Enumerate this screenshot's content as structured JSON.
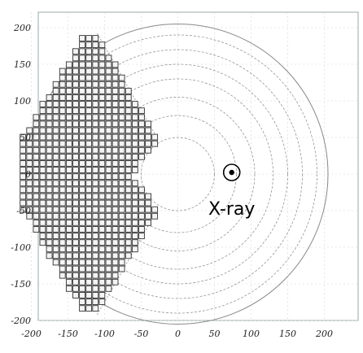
{
  "chart_data": {
    "type": "scatter",
    "title": "",
    "xlabel": "",
    "ylabel": "",
    "xlim": [
      -240,
      220
    ],
    "ylim": [
      -210,
      210
    ],
    "x_ticks": [
      -200,
      -150,
      -100,
      -50,
      0,
      50,
      100,
      150,
      200
    ],
    "y_ticks": [
      200,
      150,
      100,
      50,
      0,
      -50,
      -100,
      -150,
      -200
    ],
    "x_tick_labels": [
      "-200",
      "-150",
      "-100",
      "-50",
      "0",
      "50",
      "100",
      "150",
      "200"
    ],
    "y_tick_labels": [
      "200",
      "150",
      "100",
      "50",
      "0",
      "-50",
      "-100",
      "-150",
      "-200"
    ],
    "grid": true,
    "outer_radius": 205,
    "concentric_radii": [
      50,
      80,
      105,
      130,
      150,
      170,
      190
    ],
    "detector_module_size": 9,
    "detector_outline": [
      [
        -128,
        192
      ],
      [
        -110,
        192
      ],
      [
        -30,
        55
      ],
      [
        -30,
        42
      ],
      [
        -62,
        0
      ],
      [
        -30,
        -42
      ],
      [
        -30,
        -55
      ],
      [
        -110,
        -192
      ],
      [
        -128,
        -192
      ],
      [
        -215,
        -45
      ],
      [
        -215,
        45
      ]
    ],
    "annotation": {
      "symbol": "⊙",
      "label": "X-ray",
      "x": 58,
      "y": 0
    }
  },
  "colors": {
    "module_fill": "#f4f4f4",
    "module_stroke": "#333333",
    "circle_stroke": "#888888",
    "grid_stroke": "#cfd6dc"
  }
}
